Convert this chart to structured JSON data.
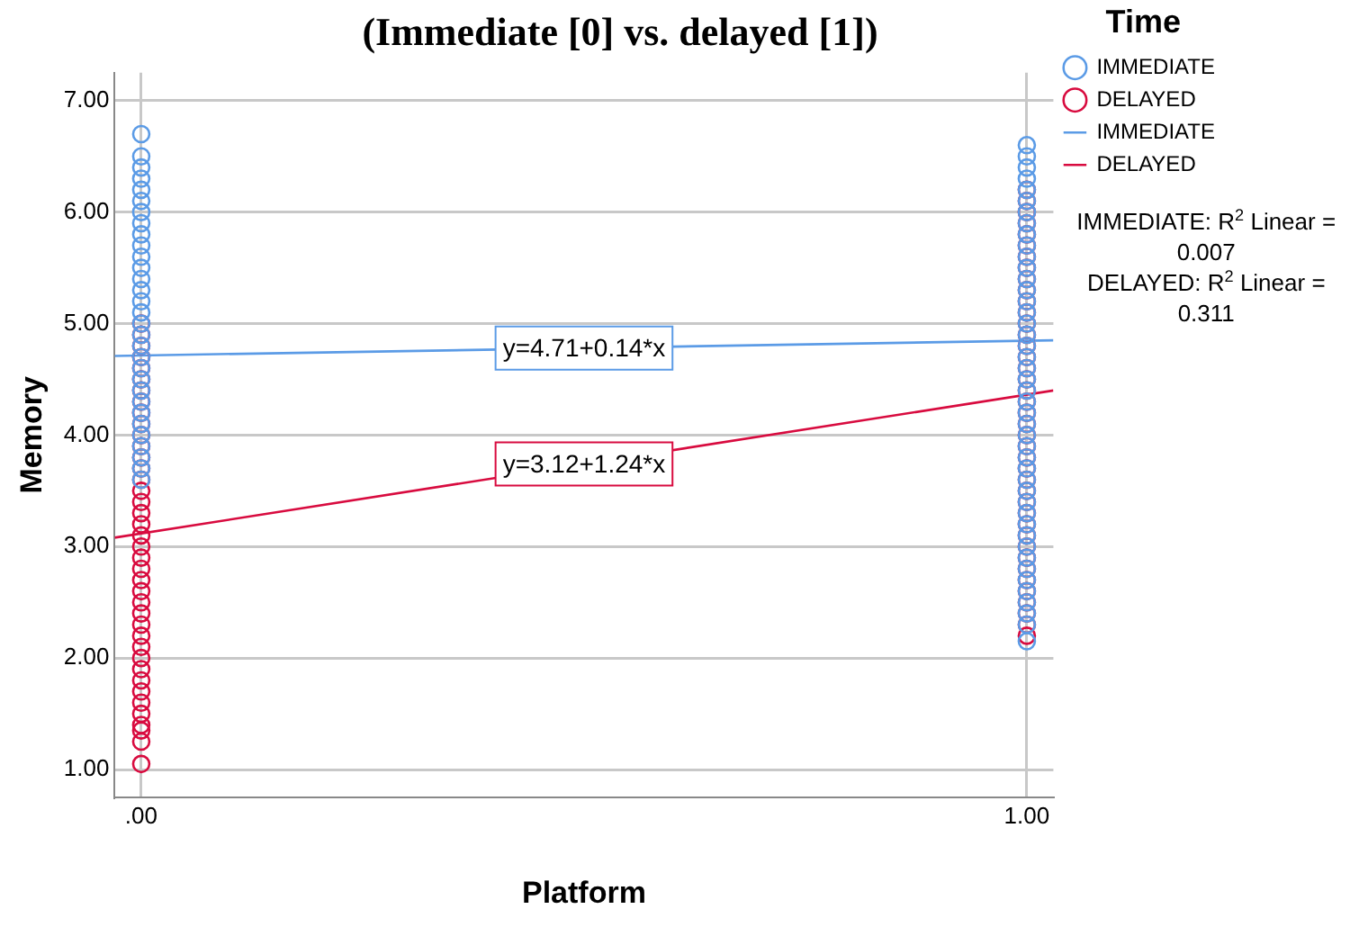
{
  "chart_data": {
    "type": "scatter",
    "title": "(Immediate [0] vs. delayed [1])",
    "xlabel": "Platform",
    "ylabel": "Memory",
    "legend_title": "Time",
    "legend": "right",
    "grid": true,
    "marker": "circle",
    "xlim": [
      -0.03,
      1.03
    ],
    "xticks": [
      {
        "value": 0,
        "label": ".00"
      },
      {
        "value": 1,
        "label": "1.00"
      }
    ],
    "ylim": [
      0.75,
      7.25
    ],
    "yticks": [
      {
        "value": 1,
        "label": "1.00"
      },
      {
        "value": 2,
        "label": "2.00"
      },
      {
        "value": 3,
        "label": "3.00"
      },
      {
        "value": 4,
        "label": "4.00"
      },
      {
        "value": 5,
        "label": "5.00"
      },
      {
        "value": 6,
        "label": "6.00"
      },
      {
        "value": 7,
        "label": "7.00"
      }
    ],
    "series": [
      {
        "name": "IMMEDIATE",
        "type": "scatter",
        "color": "#5b9be6",
        "x": [
          0,
          0,
          0,
          0,
          0,
          0,
          0,
          0,
          0,
          0,
          0,
          0,
          0,
          0,
          0,
          0,
          0,
          0,
          0,
          0,
          0,
          0,
          0,
          0,
          0,
          0,
          0,
          0,
          0,
          0,
          0,
          1,
          1,
          1,
          1,
          1,
          1,
          1,
          1,
          1,
          1,
          1,
          1,
          1,
          1,
          1,
          1,
          1,
          1,
          1,
          1,
          1,
          1,
          1,
          1,
          1,
          1,
          1,
          1,
          1,
          1,
          1,
          1,
          1,
          1,
          1,
          1,
          1,
          1,
          1,
          1,
          1,
          1,
          1,
          1,
          1
        ],
        "values": [
          3.6,
          3.7,
          3.8,
          3.9,
          4.0,
          4.1,
          4.2,
          4.3,
          4.4,
          4.5,
          4.6,
          4.7,
          4.8,
          4.9,
          5.0,
          5.1,
          5.2,
          5.3,
          5.4,
          5.5,
          5.6,
          5.7,
          5.8,
          5.9,
          6.0,
          6.1,
          6.2,
          6.3,
          6.4,
          6.5,
          6.7,
          2.15,
          2.3,
          2.4,
          2.5,
          2.6,
          2.7,
          2.8,
          2.9,
          3.0,
          3.1,
          3.2,
          3.3,
          3.4,
          3.5,
          3.6,
          3.7,
          3.8,
          3.9,
          4.0,
          4.1,
          4.2,
          4.3,
          4.4,
          4.5,
          4.6,
          4.7,
          4.8,
          4.9,
          5.0,
          5.1,
          5.2,
          5.3,
          5.4,
          5.5,
          5.6,
          5.7,
          5.8,
          5.9,
          6.0,
          6.1,
          6.2,
          6.3,
          6.4,
          6.5,
          6.6
        ]
      },
      {
        "name": "DELAYED",
        "type": "scatter",
        "color": "#d80b3f",
        "x": [
          0,
          0,
          0,
          0,
          0,
          0,
          0,
          0,
          0,
          0,
          0,
          0,
          0,
          0,
          0,
          0,
          0,
          0,
          0,
          0,
          0,
          0,
          0,
          0,
          0,
          0,
          0,
          0,
          0,
          0,
          0,
          0,
          0,
          0,
          0,
          0,
          0,
          0,
          0,
          0,
          1,
          1,
          1,
          1,
          1,
          1,
          1,
          1,
          1,
          1,
          1,
          1,
          1,
          1,
          1,
          1,
          1,
          1,
          1,
          1,
          1,
          1,
          1,
          1,
          1,
          1,
          1,
          1,
          1,
          1,
          1,
          1,
          1,
          1,
          1,
          1,
          1,
          1,
          1,
          1,
          1
        ],
        "values": [
          1.05,
          1.25,
          1.35,
          1.4,
          1.5,
          1.6,
          1.7,
          1.8,
          1.9,
          2.0,
          2.1,
          2.2,
          2.3,
          2.4,
          2.5,
          2.6,
          2.7,
          2.8,
          2.9,
          3.0,
          3.1,
          3.2,
          3.3,
          3.4,
          3.5,
          3.6,
          3.7,
          3.8,
          3.9,
          4.0,
          4.1,
          4.2,
          4.3,
          4.4,
          4.5,
          4.6,
          4.7,
          4.8,
          4.9,
          5.0,
          2.2,
          2.3,
          2.4,
          2.5,
          2.6,
          2.7,
          2.8,
          2.9,
          3.0,
          3.1,
          3.2,
          3.3,
          3.4,
          3.5,
          3.6,
          3.7,
          3.8,
          3.9,
          4.0,
          4.1,
          4.2,
          4.3,
          4.4,
          4.5,
          4.6,
          4.7,
          4.8,
          4.9,
          5.0,
          5.1,
          5.2,
          5.3,
          5.4,
          5.5,
          5.6,
          5.7,
          5.8,
          5.9,
          6.0,
          6.1,
          6.2
        ]
      },
      {
        "name": "IMMEDIATE",
        "type": "line",
        "marker": "none",
        "color": "#5b9be6",
        "x": [
          -0.03,
          1.03
        ],
        "values": [
          4.71,
          4.85
        ]
      },
      {
        "name": "DELAYED",
        "type": "line",
        "marker": "none",
        "color": "#d80b3f",
        "x": [
          -0.03,
          1.03
        ],
        "values": [
          3.08,
          4.4
        ]
      }
    ],
    "annotations": [
      {
        "text": "y=4.71+0.14*x",
        "x": 0.5,
        "y": 4.78
      },
      {
        "text": "y=3.12+1.24*x",
        "x": 0.5,
        "y": 3.74
      },
      "IMMEDIATE: R$^{2}$ Linear = 0.007",
      "DELAYED: R$^{2}$ Linear = 0.311"
    ]
  }
}
